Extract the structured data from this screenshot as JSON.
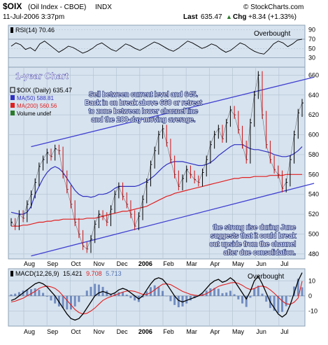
{
  "header": {
    "symbol": "$OIX",
    "name": "(Oil Index - CBOE)",
    "exchange": "INDX",
    "watermark": "© StockCharts.com",
    "date": "11-Jul-2006 3:37pm",
    "last_label": "Last",
    "last_value": "635.47",
    "chg_label": "Chg",
    "chg_value": "+8.34 (+1.33%)",
    "chg_arrow": "▲"
  },
  "colors": {
    "panel_bg": "#d7e3ef",
    "ma50": "#3030c0",
    "ma200": "#e02020",
    "up": "#2b7a2b",
    "down": "#d01010",
    "annotation": "#ffffff",
    "channel": "#4040d0",
    "macd_line": "#000000",
    "signal_line": "#e02020",
    "histogram": "#5070b0"
  },
  "chart_data": [
    {
      "type": "line",
      "panel": "rsi",
      "legend": "RSI(14) 70.46",
      "label": "Overbought",
      "y_ticks": [
        90,
        70,
        50,
        30
      ],
      "ylim": [
        10,
        100
      ],
      "values": [
        55,
        62,
        58,
        48,
        52,
        45,
        60,
        66,
        58,
        50,
        42,
        48,
        55,
        52,
        46,
        40,
        44,
        50,
        58,
        62,
        55,
        48,
        44,
        52,
        60,
        56,
        50,
        46,
        52,
        58,
        64,
        60,
        54,
        48,
        44,
        50,
        58,
        66,
        62,
        56,
        50,
        54,
        60,
        56,
        48,
        42,
        46,
        54,
        62,
        58,
        50,
        44,
        40,
        38,
        48,
        60,
        66,
        62,
        54,
        60,
        68,
        70
      ]
    },
    {
      "type": "line",
      "panel": "price",
      "legend": [
        "$OIX (Daily) 635.47",
        "MA(50) 588.81",
        "MA(200) 560.56",
        "Volume undef"
      ],
      "subtitle": "1-year Chart",
      "annotations": [
        "Sell between current level and 645.",
        "Back in on break above 660 or retreat",
        "to zone between lower channel line",
        "and the 200-day moving average.",
        "the strong rise during June",
        "suggests that it could break",
        "out upside from the channel",
        "after due consolidation."
      ],
      "y_ticks": [
        660,
        640,
        620,
        600,
        580,
        560,
        540,
        520,
        500,
        480
      ],
      "ylim": [
        475,
        668
      ],
      "x_tick_labels": [
        "Aug",
        "Sep",
        "Oct",
        "Nov",
        "Dec",
        "2006",
        "Feb",
        "Mar",
        "Apr",
        "May",
        "Jun",
        "Jul"
      ],
      "price": [
        512,
        508,
        520,
        516,
        530,
        540,
        552,
        568,
        575,
        582,
        578,
        586,
        584,
        560,
        545,
        530,
        512,
        500,
        488,
        485,
        495,
        510,
        520,
        518,
        512,
        525,
        540,
        548,
        538,
        530,
        520,
        508,
        518,
        535,
        552,
        570,
        584,
        600,
        606,
        592,
        575,
        560,
        548,
        556,
        565,
        560,
        555,
        552,
        562,
        575,
        590,
        600,
        606,
        596,
        612,
        625,
        620,
        605,
        590,
        575,
        612,
        640,
        660,
        620,
        590,
        575,
        565,
        560,
        546,
        552,
        575,
        600,
        622,
        632
      ],
      "ma50": [
        522,
        521,
        520,
        520,
        522,
        528,
        540,
        548,
        556,
        562,
        566,
        568,
        566,
        562,
        556,
        550,
        544,
        540,
        538,
        538,
        537,
        538,
        540,
        540,
        541,
        543,
        546,
        548,
        548,
        548,
        548,
        548,
        549,
        551,
        553,
        556,
        559,
        563,
        567,
        570,
        572,
        573,
        573,
        573,
        572,
        571,
        570,
        569,
        569,
        570,
        572,
        575,
        579,
        582,
        585,
        588,
        590,
        590,
        590,
        588,
        586,
        585,
        585,
        584,
        583,
        582,
        580,
        579,
        578,
        578,
        579,
        581,
        584,
        588
      ],
      "ma200": [
        508,
        508,
        508,
        509,
        509,
        510,
        511,
        512,
        512,
        513,
        513,
        514,
        514,
        515,
        515,
        515,
        515,
        515,
        515,
        516,
        516,
        516,
        517,
        518,
        519,
        520,
        521,
        522,
        523,
        523,
        524,
        525,
        526,
        527,
        528,
        530,
        532,
        534,
        536,
        538,
        539,
        541,
        542,
        543,
        544,
        545,
        546,
        547,
        548,
        549,
        550,
        551,
        552,
        553,
        554,
        555,
        556,
        556,
        557,
        557,
        557,
        558,
        558,
        558,
        558,
        559,
        559,
        559,
        559,
        560,
        560,
        560,
        560,
        560
      ],
      "channel_upper": [
        [
          5,
          588
        ],
        [
          73,
          655
        ]
      ],
      "channel_lower": [
        [
          5,
          478
        ],
        [
          73,
          548
        ]
      ]
    },
    {
      "type": "line",
      "panel": "macd",
      "legend_prefix": "MACD(12,26,9)",
      "legend_macd": "15.421",
      "legend_signal": "9.708",
      "legend_hist": "5.713",
      "label": "Overbought",
      "y_ticks": [
        10,
        0,
        -10
      ],
      "ylim": [
        -20,
        18
      ],
      "macd": [
        -3,
        -2,
        0,
        2,
        4,
        6,
        8,
        9,
        8,
        6,
        3,
        0,
        -4,
        -8,
        -12,
        -15,
        -16,
        -15,
        -12,
        -8,
        -4,
        0,
        2,
        3,
        2,
        1,
        2,
        4,
        5,
        4,
        2,
        0,
        -2,
        0,
        4,
        8,
        11,
        12,
        11,
        8,
        4,
        0,
        -3,
        -4,
        -3,
        -2,
        -1,
        0,
        2,
        5,
        8,
        10,
        11,
        9,
        10,
        12,
        10,
        6,
        2,
        -2,
        3,
        10,
        13,
        8,
        2,
        -4,
        -8,
        -12,
        -14,
        -12,
        -6,
        2,
        10,
        15.4
      ],
      "signal": [
        -4,
        -3.5,
        -2.5,
        -1.5,
        0,
        1.5,
        3,
        5,
        6,
        6.5,
        6,
        5,
        3,
        0,
        -3,
        -6,
        -9,
        -11,
        -12,
        -11.5,
        -10,
        -8,
        -5.5,
        -3,
        -1.5,
        -0.5,
        0.5,
        1.5,
        2.5,
        3.2,
        3.4,
        3,
        2,
        1,
        1,
        2.2,
        4,
        6,
        7.7,
        8,
        7.5,
        6,
        4.5,
        3,
        2,
        1,
        0.5,
        0.2,
        0.5,
        1.5,
        3,
        4.8,
        6.3,
        7.2,
        7.8,
        8.6,
        8.9,
        8.3,
        7,
        5.3,
        4.2,
        4.9,
        6.2,
        6.5,
        5.8,
        4,
        1.8,
        -0.8,
        -3.4,
        -5.2,
        -5.6,
        -4.2,
        -1.4,
        9.7
      ]
    }
  ]
}
